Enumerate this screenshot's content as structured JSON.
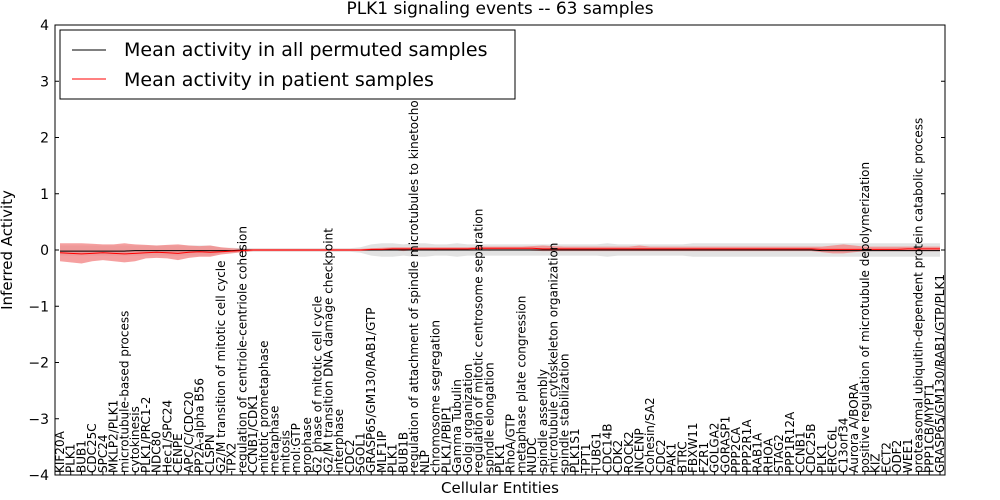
{
  "chart_data": {
    "type": "line",
    "title": "PLK1 signaling events -- 63 samples",
    "xlabel": "Cellular Entities",
    "ylabel": "Inferred Activity",
    "ylim": [
      -4,
      4
    ],
    "yticks": [
      -4,
      -3,
      -2,
      -1,
      0,
      1,
      2,
      3,
      4
    ],
    "grid": false,
    "legend_position": "top-left",
    "categories": [
      "KIF20A",
      "PLK1",
      "BUB1",
      "CDC25C",
      "SPC24",
      "MKLP2/PLK1",
      "microtubule-based process",
      "cytokinesis",
      "PLK1/PRC1-2",
      "NDC80",
      "Hec1/SPC24",
      "CENPE",
      "APC/C/CDC20",
      "PP2A-alpha B56",
      "CLSPN",
      "G2/M transition of mitotic cell cycle",
      "TPX2",
      "regulation of centriole-centriole cohesion",
      "CCNB1/CDK1",
      "mitotic prometaphase",
      "metaphase",
      "mitosis",
      "mol:GTP",
      "prophase",
      "G2 phase of mitotic cell cycle",
      "G2/M transition DNA damage checkpoint",
      "interphase",
      "CDC2",
      "SGOL1",
      "GRASP65/GM130/RAB1/GTP",
      "MLF1IP",
      "PLK1",
      "BUB1B",
      "regulation of attachment of spindle microtubules to kinetochore",
      "NLP",
      "chromosome segregation",
      "PLK1/PBIP1",
      "Gamma Tubulin",
      "Golgi organization",
      "regulation of mitotic centrosome separation",
      "spindle elongation",
      "PLK1",
      "RhoA/GTP",
      "metaphase plate congression",
      "NUDC",
      "spindle assembly",
      "microtubule cytoskeleton organization",
      "spindle stabilization",
      "PLK1S1",
      "TPT1",
      "TUBG1",
      "CDC14B",
      "CDK2",
      "ROCK2",
      "INCENP",
      "Cohesin/SA2",
      "CDC2",
      "PAK1",
      "BTRC",
      "FBXW11",
      "FZR1",
      "GOLGA2",
      "GORASP1",
      "PPP2CA",
      "PPP2R1A",
      "RAB1A",
      "RHOA",
      "STAG2",
      "PPP1R12A",
      "CCNB1",
      "CDC25B",
      "PLK1",
      "ERCC6L",
      "C13orf34",
      "Aurora A/BORA",
      "positive regulation of microtubule depolymerization",
      "KIZ",
      "ECT2",
      "ODF2",
      "WEE1",
      "proteasomal ubiquitin-dependent protein catabolic process",
      "PPP1CB/MYPT1",
      "GRASP65/GM130/RAB1/GTP/PLK1"
    ],
    "series": [
      {
        "name": "Mean activity in all permuted samples",
        "color": "#000000",
        "values": [
          -0.02,
          -0.02,
          -0.02,
          -0.02,
          -0.02,
          -0.02,
          -0.02,
          -0.01,
          -0.01,
          -0.01,
          -0.01,
          -0.01,
          -0.01,
          -0.01,
          -0.01,
          -0.01,
          -0.01,
          0,
          0,
          0,
          0,
          0,
          0,
          0,
          0,
          0,
          0,
          0,
          0,
          0,
          0,
          0,
          0,
          0,
          0,
          0,
          0,
          0,
          0,
          0,
          0,
          0,
          0,
          0,
          0,
          0,
          0,
          0,
          0,
          0,
          0,
          0,
          0,
          0,
          0,
          0,
          0,
          0,
          0,
          0,
          0,
          0,
          0,
          0,
          0,
          0,
          0,
          0,
          0,
          0,
          0,
          -0.01,
          -0.01,
          -0.01,
          -0.01,
          -0.01,
          -0.01,
          -0.01,
          -0.01,
          -0.01,
          -0.01,
          -0.01,
          -0.01
        ]
      },
      {
        "name": "Mean activity in patient samples",
        "color": "#ff0000",
        "values": [
          -0.05,
          -0.06,
          -0.07,
          -0.06,
          -0.05,
          -0.06,
          -0.07,
          -0.06,
          -0.05,
          -0.04,
          -0.05,
          -0.06,
          -0.04,
          -0.03,
          -0.04,
          -0.03,
          -0.02,
          -0.01,
          0,
          0,
          0,
          0,
          0,
          0,
          0,
          0,
          0,
          0,
          0,
          0.01,
          0.01,
          0.02,
          0.02,
          0.02,
          0.02,
          0.02,
          0.02,
          0.02,
          0.02,
          0.03,
          0.03,
          0.03,
          0.03,
          0.03,
          0.03,
          0.02,
          0.02,
          0.02,
          0.02,
          0.02,
          0.02,
          0.02,
          0.02,
          0.02,
          0.02,
          0.02,
          0.02,
          0.02,
          0.02,
          0.02,
          0.02,
          0.02,
          0.02,
          0.02,
          0.02,
          0.02,
          0.02,
          0.02,
          0.02,
          0.02,
          0.02,
          0.01,
          0.01,
          0.01,
          0.01,
          0.01,
          0.01,
          0.01,
          0.01,
          0.02,
          0.02,
          0.02,
          0.02
        ]
      }
    ],
    "band_permuted": {
      "color": "#bfbfbf",
      "lower": [
        -0.1,
        -0.1,
        -0.1,
        -0.1,
        -0.1,
        -0.1,
        -0.1,
        -0.1,
        -0.1,
        -0.1,
        -0.1,
        -0.1,
        -0.1,
        -0.1,
        -0.1,
        -0.05,
        -0.05,
        -0.03,
        -0.03,
        -0.03,
        -0.03,
        -0.03,
        -0.03,
        -0.03,
        -0.03,
        -0.03,
        -0.03,
        -0.03,
        -0.05,
        -0.1,
        -0.12,
        -0.12,
        -0.1,
        -0.12,
        -0.12,
        -0.1,
        -0.1,
        -0.12,
        -0.1,
        -0.1,
        -0.1,
        -0.1,
        -0.1,
        -0.1,
        -0.1,
        -0.1,
        -0.1,
        -0.1,
        -0.1,
        -0.1,
        -0.1,
        -0.12,
        -0.1,
        -0.1,
        -0.1,
        -0.1,
        -0.1,
        -0.1,
        -0.1,
        -0.12,
        -0.12,
        -0.12,
        -0.12,
        -0.12,
        -0.12,
        -0.12,
        -0.12,
        -0.12,
        -0.12,
        -0.12,
        -0.12,
        -0.12,
        -0.12,
        -0.12,
        -0.12,
        -0.12,
        -0.12,
        -0.12,
        -0.12,
        -0.12,
        -0.12,
        -0.12,
        -0.12
      ],
      "upper": [
        0.08,
        0.08,
        0.08,
        0.08,
        0.08,
        0.08,
        0.08,
        0.08,
        0.08,
        0.08,
        0.08,
        0.08,
        0.08,
        0.08,
        0.08,
        0.04,
        0.04,
        0.03,
        0.03,
        0.03,
        0.03,
        0.03,
        0.03,
        0.03,
        0.03,
        0.03,
        0.03,
        0.03,
        0.05,
        0.1,
        0.12,
        0.12,
        0.1,
        0.12,
        0.12,
        0.1,
        0.1,
        0.12,
        0.1,
        0.1,
        0.1,
        0.1,
        0.1,
        0.1,
        0.1,
        0.1,
        0.1,
        0.1,
        0.1,
        0.1,
        0.1,
        0.12,
        0.1,
        0.1,
        0.1,
        0.1,
        0.1,
        0.1,
        0.1,
        0.12,
        0.12,
        0.12,
        0.12,
        0.12,
        0.12,
        0.12,
        0.12,
        0.12,
        0.12,
        0.12,
        0.12,
        0.12,
        0.12,
        0.12,
        0.12,
        0.12,
        0.12,
        0.12,
        0.12,
        0.12,
        0.12,
        0.12,
        0.12
      ]
    },
    "band_patient": {
      "color": "#f28080",
      "lower": [
        -0.2,
        -0.22,
        -0.24,
        -0.2,
        -0.18,
        -0.2,
        -0.22,
        -0.2,
        -0.15,
        -0.14,
        -0.15,
        -0.18,
        -0.14,
        -0.12,
        -0.12,
        -0.08,
        -0.06,
        -0.04,
        -0.02,
        -0.02,
        -0.02,
        -0.02,
        -0.02,
        -0.02,
        -0.02,
        -0.02,
        -0.02,
        -0.02,
        -0.02,
        -0.01,
        -0.01,
        0,
        -0.02,
        0,
        0,
        -0.01,
        0,
        0,
        0,
        0,
        -0.01,
        0,
        0,
        0,
        -0.01,
        -0.02,
        -0.02,
        -0.02,
        -0.02,
        -0.02,
        -0.02,
        -0.02,
        -0.02,
        -0.02,
        -0.02,
        -0.02,
        -0.02,
        -0.02,
        -0.02,
        -0.02,
        -0.02,
        -0.02,
        -0.02,
        -0.02,
        -0.02,
        -0.02,
        -0.02,
        -0.02,
        -0.02,
        -0.02,
        -0.02,
        -0.04,
        -0.06,
        -0.06,
        -0.04,
        -0.02,
        -0.02,
        -0.02,
        -0.02,
        -0.02,
        -0.02,
        -0.02,
        -0.02
      ],
      "upper": [
        0.12,
        0.12,
        0.12,
        0.11,
        0.1,
        0.1,
        0.12,
        0.1,
        0.09,
        0.08,
        0.09,
        0.1,
        0.08,
        0.07,
        0.08,
        0.05,
        0.03,
        0.02,
        0.02,
        0.02,
        0.02,
        0.02,
        0.02,
        0.02,
        0.02,
        0.02,
        0.02,
        0.02,
        0.02,
        0.03,
        0.04,
        0.05,
        0.05,
        0.05,
        0.05,
        0.05,
        0.05,
        0.05,
        0.05,
        0.06,
        0.06,
        0.06,
        0.06,
        0.06,
        0.07,
        0.08,
        0.07,
        0.06,
        0.06,
        0.06,
        0.06,
        0.06,
        0.06,
        0.06,
        0.08,
        0.06,
        0.06,
        0.06,
        0.06,
        0.06,
        0.06,
        0.06,
        0.06,
        0.06,
        0.06,
        0.06,
        0.06,
        0.06,
        0.06,
        0.06,
        0.06,
        0.06,
        0.08,
        0.1,
        0.08,
        0.06,
        0.06,
        0.06,
        0.06,
        0.06,
        0.06,
        0.06,
        0.06
      ]
    }
  }
}
